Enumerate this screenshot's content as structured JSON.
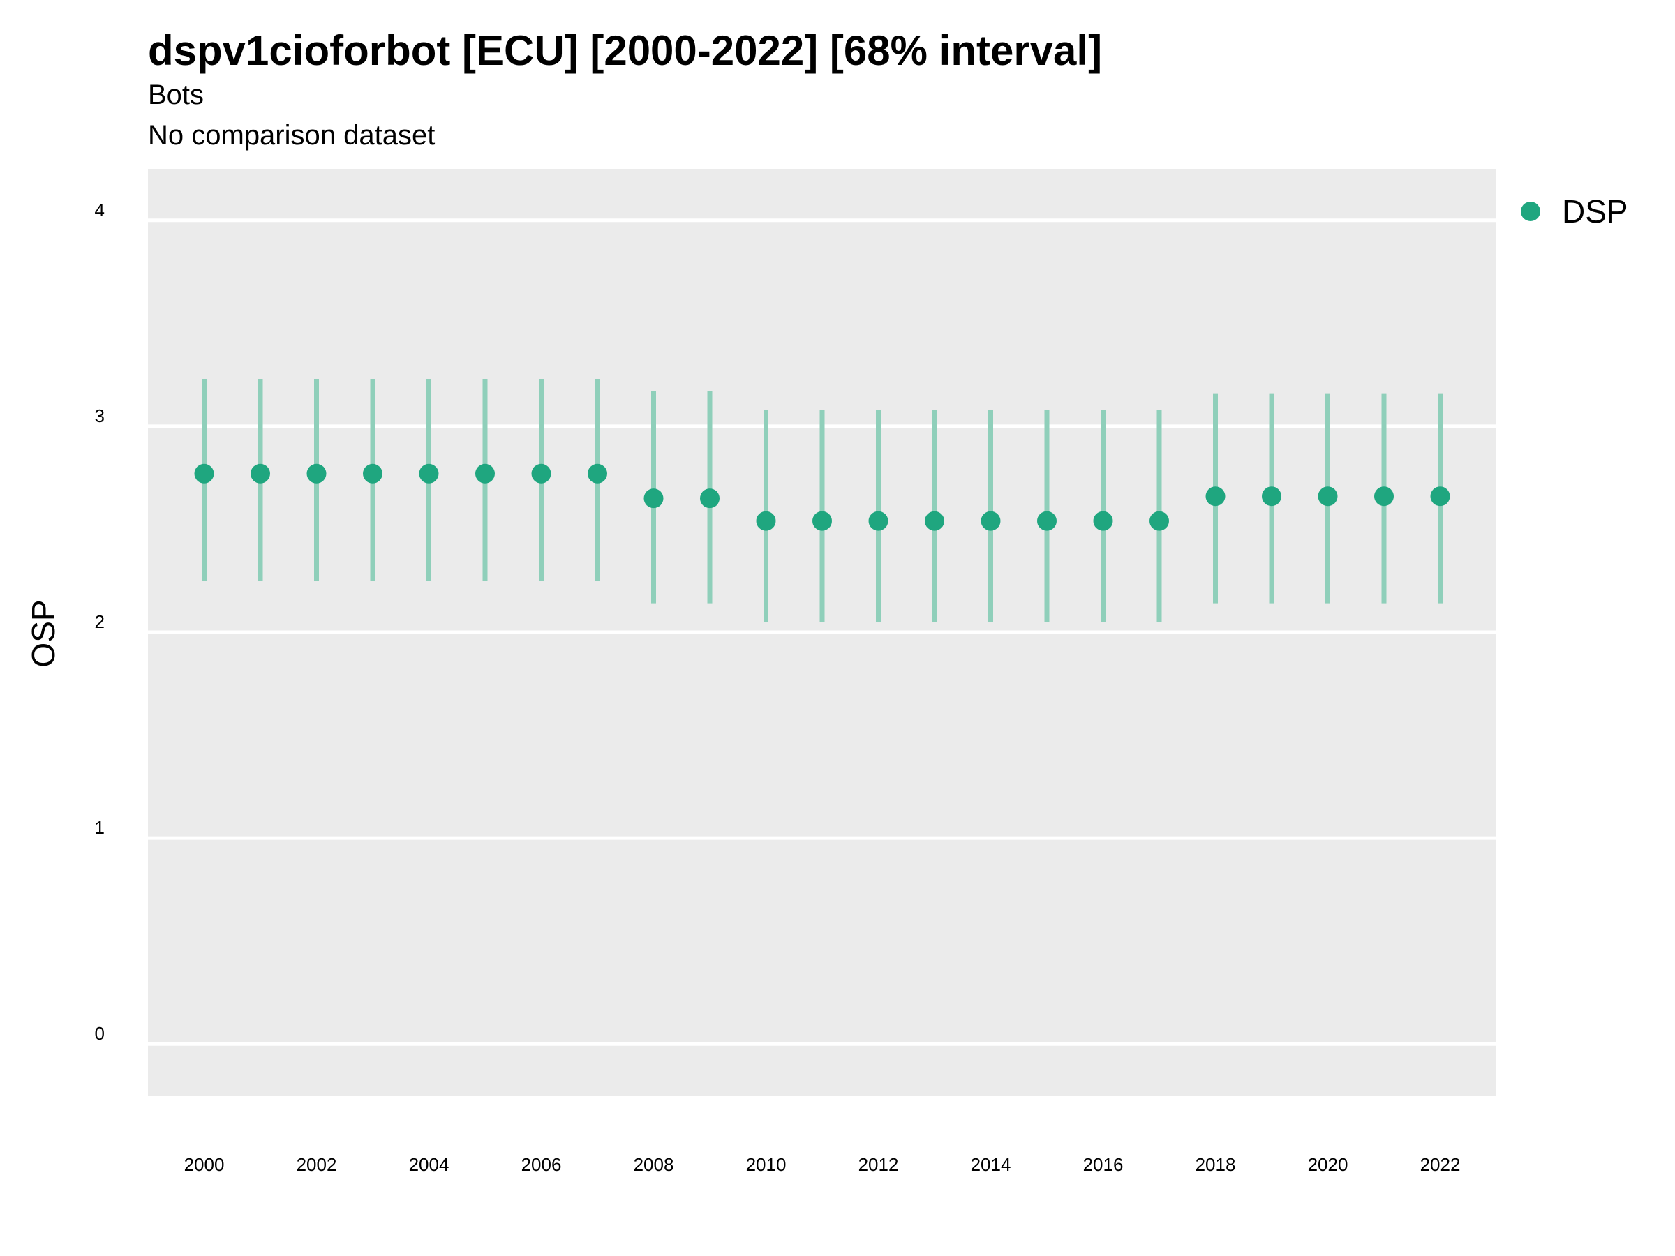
{
  "chart_data": {
    "type": "scatter",
    "title": "dspv1cioforbot [ECU] [2000-2022] [68% interval]",
    "subtitle": "Bots",
    "caption": "No comparison dataset",
    "ylabel": "OSP",
    "xlabel": "",
    "ylim": [
      -0.25,
      4.25
    ],
    "xlim": [
      1999,
      2023
    ],
    "yticks": [
      0,
      1,
      2,
      3,
      4
    ],
    "xticks": [
      2000,
      2002,
      2004,
      2006,
      2008,
      2010,
      2012,
      2014,
      2016,
      2018,
      2020,
      2022
    ],
    "grid": true,
    "legend_position": "top-right",
    "colors": {
      "point": "#1fa67f",
      "errorbar": "#8fcfba",
      "panel": "#ebebeb",
      "grid": "#ffffff"
    },
    "series": [
      {
        "name": "DSP",
        "points": [
          {
            "x": 2000,
            "y": 2.77,
            "low": 2.25,
            "high": 3.23
          },
          {
            "x": 2001,
            "y": 2.77,
            "low": 2.25,
            "high": 3.23
          },
          {
            "x": 2002,
            "y": 2.77,
            "low": 2.25,
            "high": 3.23
          },
          {
            "x": 2003,
            "y": 2.77,
            "low": 2.25,
            "high": 3.23
          },
          {
            "x": 2004,
            "y": 2.77,
            "low": 2.25,
            "high": 3.23
          },
          {
            "x": 2005,
            "y": 2.77,
            "low": 2.25,
            "high": 3.23
          },
          {
            "x": 2006,
            "y": 2.77,
            "low": 2.25,
            "high": 3.23
          },
          {
            "x": 2007,
            "y": 2.77,
            "low": 2.25,
            "high": 3.23
          },
          {
            "x": 2008,
            "y": 2.65,
            "low": 2.14,
            "high": 3.17
          },
          {
            "x": 2009,
            "y": 2.65,
            "low": 2.14,
            "high": 3.17
          },
          {
            "x": 2010,
            "y": 2.54,
            "low": 2.05,
            "high": 3.08
          },
          {
            "x": 2011,
            "y": 2.54,
            "low": 2.05,
            "high": 3.08
          },
          {
            "x": 2012,
            "y": 2.54,
            "low": 2.05,
            "high": 3.08
          },
          {
            "x": 2013,
            "y": 2.54,
            "low": 2.05,
            "high": 3.08
          },
          {
            "x": 2014,
            "y": 2.54,
            "low": 2.05,
            "high": 3.08
          },
          {
            "x": 2015,
            "y": 2.54,
            "low": 2.05,
            "high": 3.08
          },
          {
            "x": 2016,
            "y": 2.54,
            "low": 2.05,
            "high": 3.08
          },
          {
            "x": 2017,
            "y": 2.54,
            "low": 2.05,
            "high": 3.08
          },
          {
            "x": 2018,
            "y": 2.66,
            "low": 2.14,
            "high": 3.16
          },
          {
            "x": 2019,
            "y": 2.66,
            "low": 2.14,
            "high": 3.16
          },
          {
            "x": 2020,
            "y": 2.66,
            "low": 2.14,
            "high": 3.16
          },
          {
            "x": 2021,
            "y": 2.66,
            "low": 2.14,
            "high": 3.16
          },
          {
            "x": 2022,
            "y": 2.66,
            "low": 2.14,
            "high": 3.16
          }
        ]
      }
    ]
  }
}
